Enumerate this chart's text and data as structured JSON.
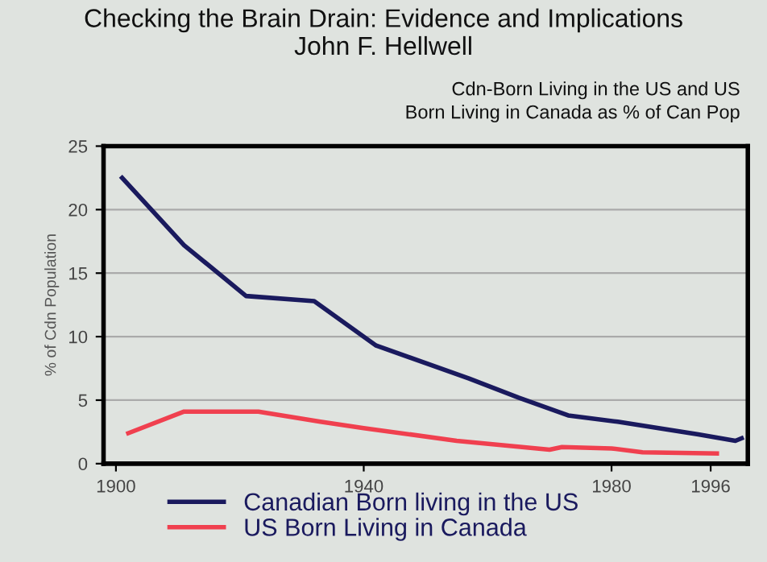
{
  "chart_data": {
    "type": "line",
    "title": "Checking the Brain Drain: Evidence and Implications\nJohn F. Hellwell",
    "subtitle": "Cdn-Born Living in the US and US\nBorn Living in Canada as % of Can Pop",
    "ylabel": "% of Cdn Population",
    "series": [
      {
        "name": "Canadian Born living in the US",
        "color": "#1a1a5e",
        "x": [
          1901,
          1911,
          1921,
          1932,
          1942,
          1957,
          1965,
          1973,
          1981,
          1994,
          2000,
          2001
        ],
        "values": [
          22.5,
          17.2,
          13.2,
          12.8,
          9.3,
          6.7,
          5.2,
          3.8,
          3.3,
          2.3,
          1.8,
          2.0
        ]
      },
      {
        "name": "US Born Living in Canada",
        "color": "#f0404f",
        "x": [
          1902,
          1911,
          1923,
          1933,
          1940,
          1955,
          1970,
          1972,
          1980,
          1985,
          1997
        ],
        "values": [
          2.4,
          4.1,
          4.1,
          3.3,
          2.8,
          1.8,
          1.1,
          1.3,
          1.2,
          0.9,
          0.8
        ]
      }
    ],
    "xlim": [
      1898,
      2002
    ],
    "xticks": [
      1900,
      1940,
      1980,
      1996
    ],
    "ylim": [
      0,
      25
    ],
    "yticks": [
      0,
      5,
      10,
      15,
      20,
      25
    ],
    "grid": "y",
    "legend": "bottom",
    "marker": "none",
    "line_style": "solid"
  }
}
